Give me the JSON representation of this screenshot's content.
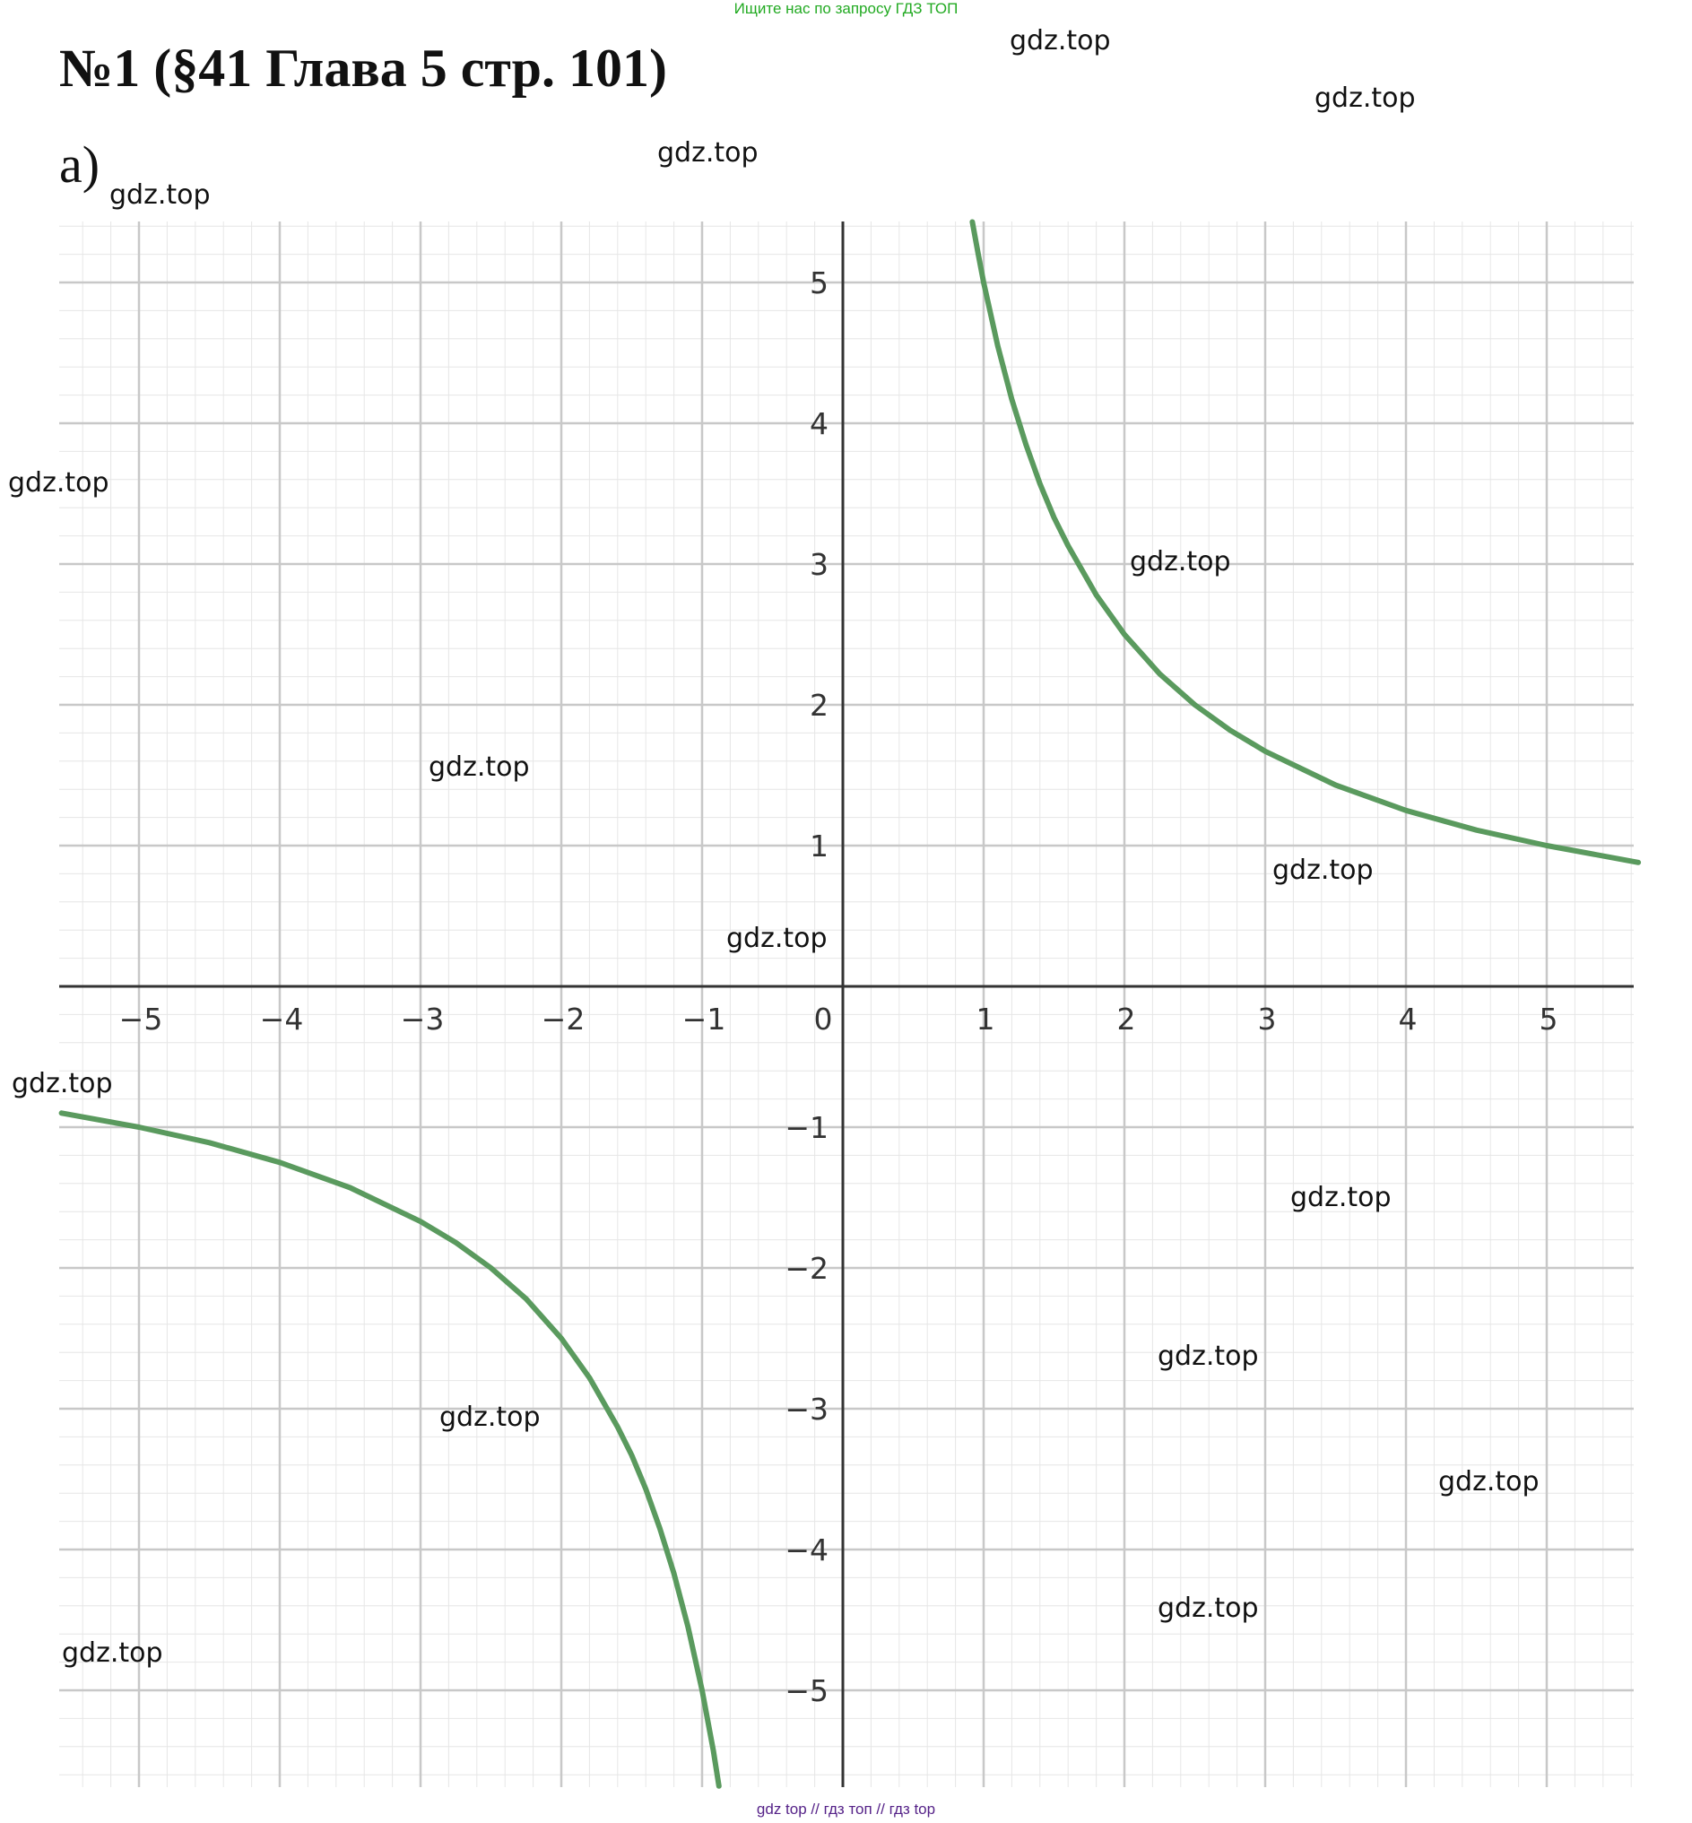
{
  "header": {
    "top_note": "Ищите нас по запросу ГДЗ ТОП",
    "title": "№1 (§41 Глава 5  стр. 101)",
    "part_label": "а)"
  },
  "footer": {
    "note": "gdz top  //  гдз топ  //  гдз top"
  },
  "watermarks": [
    "gdz.top",
    "gdz.top",
    "gdz.top",
    "gdz.top",
    "gdz.top",
    "gdz.top",
    "gdz.top",
    "gdz.top",
    "gdz.top",
    "gdz.top",
    "gdz.top",
    "gdz.top",
    "gdz.top",
    "gdz.top",
    "gdz.top",
    "gdz.top"
  ],
  "chart_data": {
    "type": "line",
    "title": "",
    "xlabel": "",
    "ylabel": "",
    "xlim": [
      -5.55,
      5.65
    ],
    "ylim": [
      -5.7,
      5.45
    ],
    "grid": true,
    "minor_grid_step": 0.2,
    "x_ticks": [
      -5,
      -4,
      -3,
      -2,
      -1,
      0,
      1,
      2,
      3,
      4,
      5
    ],
    "x_tick_labels": [
      "−5",
      "−4",
      "−3",
      "−2",
      "−1",
      "0",
      "1",
      "2",
      "3",
      "4",
      "5"
    ],
    "y_ticks": [
      5,
      4,
      3,
      2,
      1,
      -1,
      -2,
      -3,
      -4,
      -5
    ],
    "y_tick_labels": [
      "5",
      "4",
      "3",
      "2",
      "1",
      "−1",
      "−2",
      "−3",
      "−4",
      "−5"
    ],
    "series_color": "#5a9a5e",
    "series": [
      {
        "x": [
          0.92,
          0.96,
          1.0,
          1.1,
          1.2,
          1.3,
          1.4,
          1.5,
          1.6,
          1.8,
          2.0,
          2.25,
          2.5,
          2.75,
          3.0,
          3.5,
          4.0,
          4.5,
          5.0,
          5.65
        ],
        "y": [
          5.43,
          5.21,
          5.0,
          4.55,
          4.17,
          3.85,
          3.57,
          3.33,
          3.13,
          2.78,
          2.5,
          2.22,
          2.0,
          1.82,
          1.67,
          1.43,
          1.25,
          1.11,
          1.0,
          0.88
        ]
      },
      {
        "x": [
          -5.55,
          -5.0,
          -4.5,
          -4.0,
          -3.5,
          -3.0,
          -2.75,
          -2.5,
          -2.25,
          -2.0,
          -1.8,
          -1.6,
          -1.5,
          -1.4,
          -1.3,
          -1.2,
          -1.1,
          -1.0,
          -0.92,
          -0.88
        ],
        "y": [
          -0.9,
          -1.0,
          -1.11,
          -1.25,
          -1.43,
          -1.67,
          -1.82,
          -2.0,
          -2.22,
          -2.5,
          -2.78,
          -3.13,
          -3.33,
          -3.57,
          -3.85,
          -4.17,
          -4.55,
          -5.0,
          -5.43,
          -5.68
        ]
      }
    ]
  }
}
